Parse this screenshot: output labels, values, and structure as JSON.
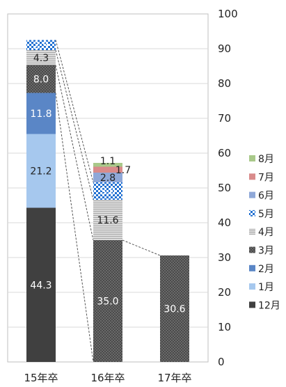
{
  "chart_data": {
    "type": "bar",
    "stacked": true,
    "categories": [
      "15年卒",
      "16年卒",
      "17年卒"
    ],
    "series": [
      {
        "name": "12月",
        "values": [
          44.3,
          0,
          0
        ],
        "color": "#404040",
        "pattern": "solid"
      },
      {
        "name": "1月",
        "values": [
          21.2,
          0,
          0
        ],
        "color": "#a6c8ee",
        "pattern": "solid"
      },
      {
        "name": "2月",
        "values": [
          11.8,
          0,
          0
        ],
        "color": "#5a86c6",
        "pattern": "solid"
      },
      {
        "name": "3月",
        "values": [
          8.0,
          35.0,
          30.6
        ],
        "color": "#4a4a4a",
        "pattern": "dots"
      },
      {
        "name": "4月",
        "values": [
          4.3,
          11.6,
          0
        ],
        "color": "#c8c8c8",
        "pattern": "hstripes"
      },
      {
        "name": "5月",
        "values": [
          2.9,
          5.0,
          0
        ],
        "color": "#1f6fd1",
        "pattern": "checker"
      },
      {
        "name": "6月",
        "values": [
          0,
          2.8,
          0
        ],
        "color": "#8fa8d8",
        "pattern": "solid"
      },
      {
        "name": "7月",
        "values": [
          0,
          1.7,
          0
        ],
        "color": "#d98b8b",
        "pattern": "solid"
      },
      {
        "name": "8月",
        "values": [
          0,
          1.1,
          0
        ],
        "color": "#a9c98a",
        "pattern": "solid"
      }
    ],
    "ylim": [
      0,
      100
    ],
    "yticks": [
      0,
      10,
      20,
      30,
      40,
      50,
      60,
      70,
      80,
      90,
      100
    ],
    "y_axis_side": "right",
    "grid": true,
    "legend": "right",
    "legend_order": [
      "8月",
      "7月",
      "6月",
      "5月",
      "4月",
      "3月",
      "2月",
      "1月",
      "12月"
    ],
    "series_lines": true,
    "title": "",
    "xlabel": "",
    "ylabel": ""
  }
}
